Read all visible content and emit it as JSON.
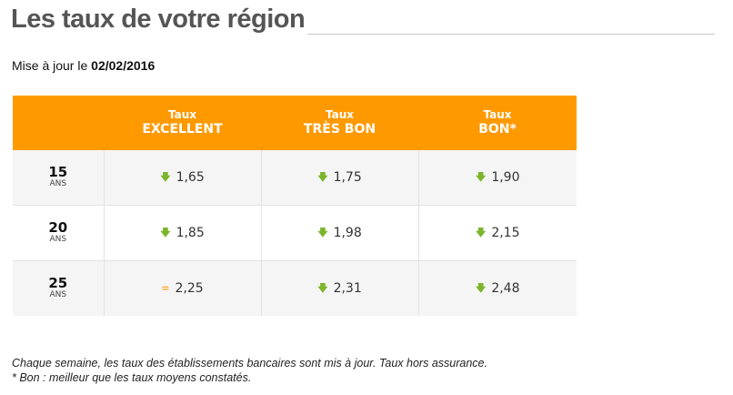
{
  "header": {
    "title": "Les taux de votre région"
  },
  "update": {
    "label": "Mise à jour le ",
    "date": "02/02/2016"
  },
  "table": {
    "columns": [
      {
        "small": "Taux",
        "big": "EXCELLENT"
      },
      {
        "small": "Taux",
        "big": "TRÈS BON"
      },
      {
        "small": "Taux",
        "big": "BON*"
      }
    ],
    "rows": [
      {
        "duration": "15",
        "unit": "ANS",
        "cells": [
          {
            "trend": "down-arrow-icon",
            "symbol": "🡇",
            "value": "1,65"
          },
          {
            "trend": "down-arrow-icon",
            "symbol": "🡇",
            "value": "1,75"
          },
          {
            "trend": "down-arrow-icon",
            "symbol": "🡇",
            "value": "1,90"
          }
        ]
      },
      {
        "duration": "20",
        "unit": "ANS",
        "cells": [
          {
            "trend": "down-arrow-icon",
            "symbol": "🡇",
            "value": "1,85"
          },
          {
            "trend": "down-arrow-icon",
            "symbol": "🡇",
            "value": "1,98"
          },
          {
            "trend": "down-arrow-icon",
            "symbol": "🡇",
            "value": "2,15"
          }
        ]
      },
      {
        "duration": "25",
        "unit": "ANS",
        "cells": [
          {
            "trend": "equal-icon",
            "symbol": "=",
            "value": "2,25"
          },
          {
            "trend": "down-arrow-icon",
            "symbol": "🡇",
            "value": "2,31"
          },
          {
            "trend": "down-arrow-icon",
            "symbol": "🡇",
            "value": "2,48"
          }
        ]
      }
    ]
  },
  "footnote": {
    "line1": "Chaque semaine, les taux des établissements bancaires sont mis à jour. Taux hors assurance.",
    "line2": "* Bon : meilleur que les taux moyens constatés."
  },
  "colors": {
    "header_background": "#ff9900",
    "trend_down": "#7bb52b",
    "trend_equal": "#f5a623",
    "title": "#555555"
  }
}
